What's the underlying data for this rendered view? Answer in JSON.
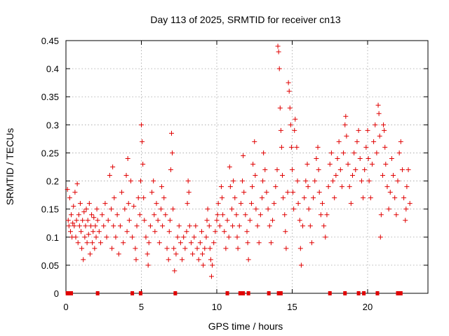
{
  "chart_data": {
    "type": "scatter",
    "title": "Day 113 of 2025, SRMTID for receiver cn13",
    "xlabel": "GPS time / hours",
    "ylabel": "SRMTID / TECUs",
    "xlim": [
      0,
      24
    ],
    "ylim": [
      0,
      0.45
    ],
    "xticks": [
      0,
      5,
      10,
      15,
      20
    ],
    "yticks": [
      0,
      0.05,
      0.1,
      0.15,
      0.2,
      0.25,
      0.3,
      0.35,
      0.4,
      0.45
    ],
    "grid": true,
    "marker": "plus",
    "color": "#e00000",
    "series": [
      {
        "name": "SRMTID",
        "points": [
          [
            0.1,
            0.185
          ],
          [
            0.15,
            0.13
          ],
          [
            0.2,
            0.12
          ],
          [
            0.25,
            0.17
          ],
          [
            0.3,
            0.11
          ],
          [
            0.35,
            0.14
          ],
          [
            0.4,
            0.1
          ],
          [
            0.45,
            0.125
          ],
          [
            0.5,
            0.155
          ],
          [
            0.55,
            0.12
          ],
          [
            0.6,
            0.18
          ],
          [
            0.65,
            0.1
          ],
          [
            0.7,
            0.13
          ],
          [
            0.75,
            0.195
          ],
          [
            0.8,
            0.09
          ],
          [
            0.85,
            0.14
          ],
          [
            0.9,
            0.12
          ],
          [
            0.95,
            0.16
          ],
          [
            1.0,
            0.11
          ],
          [
            1.05,
            0.08
          ],
          [
            1.1,
            0.13
          ],
          [
            1.15,
            0.06
          ],
          [
            1.2,
            0.145
          ],
          [
            1.25,
            0.1
          ],
          [
            1.3,
            0.12
          ],
          [
            1.35,
            0.15
          ],
          [
            1.4,
            0.09
          ],
          [
            1.45,
            0.13
          ],
          [
            1.5,
            0.105
          ],
          [
            1.55,
            0.16
          ],
          [
            1.6,
            0.07
          ],
          [
            1.65,
            0.12
          ],
          [
            1.7,
            0.14
          ],
          [
            1.75,
            0.09
          ],
          [
            1.8,
            0.11
          ],
          [
            1.85,
            0.135
          ],
          [
            1.9,
            0.08
          ],
          [
            1.95,
            0.12
          ],
          [
            2.0,
            0.1
          ],
          [
            2.05,
            0.15
          ],
          [
            2.1,
            0.13
          ],
          [
            2.2,
            0.11
          ],
          [
            2.3,
            0.09
          ],
          [
            2.4,
            0.14
          ],
          [
            2.5,
            0.12
          ],
          [
            2.6,
            0.16
          ],
          [
            2.7,
            0.1
          ],
          [
            2.8,
            0.13
          ],
          [
            2.9,
            0.21
          ],
          [
            3.0,
            0.15
          ],
          [
            3.05,
            0.08
          ],
          [
            3.1,
            0.225
          ],
          [
            3.15,
            0.12
          ],
          [
            3.2,
            0.17
          ],
          [
            3.3,
            0.1
          ],
          [
            3.4,
            0.14
          ],
          [
            3.5,
            0.07
          ],
          [
            3.6,
            0.12
          ],
          [
            3.7,
            0.18
          ],
          [
            3.8,
            0.09
          ],
          [
            3.9,
            0.15
          ],
          [
            4.0,
            0.21
          ],
          [
            4.05,
            0.11
          ],
          [
            4.1,
            0.24
          ],
          [
            4.15,
            0.16
          ],
          [
            4.2,
            0.13
          ],
          [
            4.3,
            0.2
          ],
          [
            4.4,
            0.1
          ],
          [
            4.5,
            0.155
          ],
          [
            4.6,
            0.08
          ],
          [
            4.65,
            0.06
          ],
          [
            4.7,
            0.12
          ],
          [
            4.8,
            0.17
          ],
          [
            4.9,
            0.14
          ],
          [
            4.95,
            0.2
          ],
          [
            5.0,
            0.3
          ],
          [
            5.05,
            0.27
          ],
          [
            5.1,
            0.23
          ],
          [
            5.15,
            0.17
          ],
          [
            5.2,
            0.13
          ],
          [
            5.3,
            0.1
          ],
          [
            5.4,
            0.07
          ],
          [
            5.45,
            0.05
          ],
          [
            5.5,
            0.09
          ],
          [
            5.6,
            0.12
          ],
          [
            5.7,
            0.18
          ],
          [
            5.8,
            0.2
          ],
          [
            5.85,
            0.14
          ],
          [
            5.9,
            0.11
          ],
          [
            6.0,
            0.16
          ],
          [
            6.1,
            0.13
          ],
          [
            6.2,
            0.09
          ],
          [
            6.3,
            0.15
          ],
          [
            6.35,
            0.19
          ],
          [
            6.4,
            0.12
          ],
          [
            6.5,
            0.17
          ],
          [
            6.6,
            0.14
          ],
          [
            6.7,
            0.08
          ],
          [
            6.8,
            0.06
          ],
          [
            6.85,
            0.11
          ],
          [
            6.9,
            0.13
          ],
          [
            6.95,
            0.22
          ],
          [
            7.0,
            0.285
          ],
          [
            7.05,
            0.25
          ],
          [
            7.1,
            0.15
          ],
          [
            7.15,
            0.08
          ],
          [
            7.2,
            0.04
          ],
          [
            7.3,
            0.07
          ],
          [
            7.4,
            0.1
          ],
          [
            7.5,
            0.12
          ],
          [
            7.6,
            0.09
          ],
          [
            7.7,
            0.06
          ],
          [
            7.8,
            0.1
          ],
          [
            7.9,
            0.08
          ],
          [
            8.0,
            0.11
          ],
          [
            8.05,
            0.16
          ],
          [
            8.1,
            0.2
          ],
          [
            8.15,
            0.18
          ],
          [
            8.2,
            0.12
          ],
          [
            8.3,
            0.09
          ],
          [
            8.4,
            0.07
          ],
          [
            8.5,
            0.1
          ],
          [
            8.6,
            0.12
          ],
          [
            8.7,
            0.08
          ],
          [
            8.8,
            0.06
          ],
          [
            8.9,
            0.09
          ],
          [
            9.0,
            0.11
          ],
          [
            9.05,
            0.07
          ],
          [
            9.1,
            0.05
          ],
          [
            9.2,
            0.08
          ],
          [
            9.3,
            0.1
          ],
          [
            9.35,
            0.13
          ],
          [
            9.4,
            0.15
          ],
          [
            9.5,
            0.12
          ],
          [
            9.55,
            0.08
          ],
          [
            9.6,
            0.06
          ],
          [
            9.65,
            0.03
          ],
          [
            9.7,
            0.05
          ],
          [
            9.8,
            0.09
          ],
          [
            9.9,
            0.11
          ],
          [
            10.0,
            0.13
          ],
          [
            10.05,
            0.14
          ],
          [
            10.1,
            0.16
          ],
          [
            10.2,
            0.12
          ],
          [
            10.3,
            0.19
          ],
          [
            10.35,
            0.17
          ],
          [
            10.4,
            0.14
          ],
          [
            10.5,
            0.11
          ],
          [
            10.6,
            0.08
          ],
          [
            10.7,
            0.13
          ],
          [
            10.8,
            0.1
          ],
          [
            10.85,
            0.225
          ],
          [
            10.9,
            0.19
          ],
          [
            11.0,
            0.15
          ],
          [
            11.05,
            0.12
          ],
          [
            11.1,
            0.2
          ],
          [
            11.2,
            0.17
          ],
          [
            11.3,
            0.14
          ],
          [
            11.35,
            0.1
          ],
          [
            11.4,
            0.08
          ],
          [
            11.5,
            0.12
          ],
          [
            11.6,
            0.16
          ],
          [
            11.7,
            0.2
          ],
          [
            11.75,
            0.245
          ],
          [
            11.8,
            0.18
          ],
          [
            11.9,
            0.14
          ],
          [
            12.0,
            0.11
          ],
          [
            12.05,
            0.09
          ],
          [
            12.1,
            0.06
          ],
          [
            12.2,
            0.13
          ],
          [
            12.3,
            0.16
          ],
          [
            12.35,
            0.19
          ],
          [
            12.4,
            0.23
          ],
          [
            12.5,
            0.27
          ],
          [
            12.55,
            0.21
          ],
          [
            12.6,
            0.15
          ],
          [
            12.7,
            0.12
          ],
          [
            12.8,
            0.09
          ],
          [
            12.9,
            0.14
          ],
          [
            13.0,
            0.17
          ],
          [
            13.05,
            0.2
          ],
          [
            13.1,
            0.25
          ],
          [
            13.2,
            0.22
          ],
          [
            13.3,
            0.18
          ],
          [
            13.4,
            0.15
          ],
          [
            13.5,
            0.12
          ],
          [
            13.6,
            0.09
          ],
          [
            13.7,
            0.13
          ],
          [
            13.8,
            0.16
          ],
          [
            13.9,
            0.19
          ],
          [
            14.0,
            0.22
          ],
          [
            14.05,
            0.44
          ],
          [
            14.1,
            0.43
          ],
          [
            14.15,
            0.4
          ],
          [
            14.2,
            0.33
          ],
          [
            14.25,
            0.29
          ],
          [
            14.3,
            0.26
          ],
          [
            14.35,
            0.21
          ],
          [
            14.4,
            0.17
          ],
          [
            14.5,
            0.14
          ],
          [
            14.55,
            0.11
          ],
          [
            14.6,
            0.08
          ],
          [
            14.7,
            0.18
          ],
          [
            14.75,
            0.375
          ],
          [
            14.8,
            0.36
          ],
          [
            14.85,
            0.33
          ],
          [
            14.9,
            0.3
          ],
          [
            14.95,
            0.26
          ],
          [
            15.0,
            0.22
          ],
          [
            15.05,
            0.18
          ],
          [
            15.1,
            0.15
          ],
          [
            15.15,
            0.29
          ],
          [
            15.2,
            0.31
          ],
          [
            15.3,
            0.26
          ],
          [
            15.35,
            0.2
          ],
          [
            15.4,
            0.16
          ],
          [
            15.5,
            0.13
          ],
          [
            15.55,
            0.08
          ],
          [
            15.6,
            0.05
          ],
          [
            15.7,
            0.12
          ],
          [
            15.8,
            0.17
          ],
          [
            15.9,
            0.2
          ],
          [
            16.0,
            0.23
          ],
          [
            16.05,
            0.19
          ],
          [
            16.1,
            0.15
          ],
          [
            16.2,
            0.12
          ],
          [
            16.3,
            0.09
          ],
          [
            16.4,
            0.17
          ],
          [
            16.5,
            0.2
          ],
          [
            16.6,
            0.24
          ],
          [
            16.7,
            0.26
          ],
          [
            16.75,
            0.22
          ],
          [
            16.8,
            0.18
          ],
          [
            16.9,
            0.14
          ],
          [
            17.0,
            0.16
          ],
          [
            17.1,
            0.12
          ],
          [
            17.2,
            0.1
          ],
          [
            17.3,
            0.14
          ],
          [
            17.4,
            0.19
          ],
          [
            17.5,
            0.23
          ],
          [
            17.6,
            0.25
          ],
          [
            17.7,
            0.2
          ],
          [
            17.8,
            0.17
          ],
          [
            17.9,
            0.21
          ],
          [
            18.0,
            0.24
          ],
          [
            18.1,
            0.27
          ],
          [
            18.2,
            0.22
          ],
          [
            18.3,
            0.19
          ],
          [
            18.4,
            0.25
          ],
          [
            18.5,
            0.3
          ],
          [
            18.55,
            0.315
          ],
          [
            18.6,
            0.28
          ],
          [
            18.7,
            0.23
          ],
          [
            18.8,
            0.19
          ],
          [
            18.9,
            0.16
          ],
          [
            19.0,
            0.21
          ],
          [
            19.1,
            0.25
          ],
          [
            19.2,
            0.22
          ],
          [
            19.3,
            0.27
          ],
          [
            19.4,
            0.29
          ],
          [
            19.5,
            0.24
          ],
          [
            19.6,
            0.2
          ],
          [
            19.7,
            0.17
          ],
          [
            19.8,
            0.22
          ],
          [
            19.9,
            0.26
          ],
          [
            20.0,
            0.29
          ],
          [
            20.05,
            0.24
          ],
          [
            20.1,
            0.2
          ],
          [
            20.2,
            0.17
          ],
          [
            20.3,
            0.23
          ],
          [
            20.4,
            0.27
          ],
          [
            20.5,
            0.3
          ],
          [
            20.6,
            0.25
          ],
          [
            20.7,
            0.335
          ],
          [
            20.75,
            0.32
          ],
          [
            20.8,
            0.28
          ],
          [
            20.85,
            0.1
          ],
          [
            20.9,
            0.14
          ],
          [
            21.0,
            0.21
          ],
          [
            21.05,
            0.3
          ],
          [
            21.1,
            0.29
          ],
          [
            21.15,
            0.26
          ],
          [
            21.2,
            0.23
          ],
          [
            21.3,
            0.19
          ],
          [
            21.4,
            0.15
          ],
          [
            21.5,
            0.18
          ],
          [
            21.6,
            0.24
          ],
          [
            21.7,
            0.21
          ],
          [
            21.8,
            0.17
          ],
          [
            21.9,
            0.14
          ],
          [
            22.0,
            0.2
          ],
          [
            22.1,
            0.25
          ],
          [
            22.2,
            0.27
          ],
          [
            22.3,
            0.22
          ],
          [
            22.4,
            0.17
          ],
          [
            22.5,
            0.13
          ],
          [
            22.55,
            0.15
          ],
          [
            22.6,
            0.19
          ],
          [
            22.7,
            0.22
          ],
          [
            22.8,
            0.16
          ]
        ]
      }
    ],
    "zero_points_x": [
      0.1,
      0.2,
      0.35,
      2.1,
      4.4,
      4.95,
      7.25,
      10.7,
      11.55,
      11.75,
      12.1,
      13.45,
      14.1,
      14.25,
      17.5,
      18.5,
      19.4,
      19.75,
      20.65,
      22.0,
      22.2
    ]
  }
}
